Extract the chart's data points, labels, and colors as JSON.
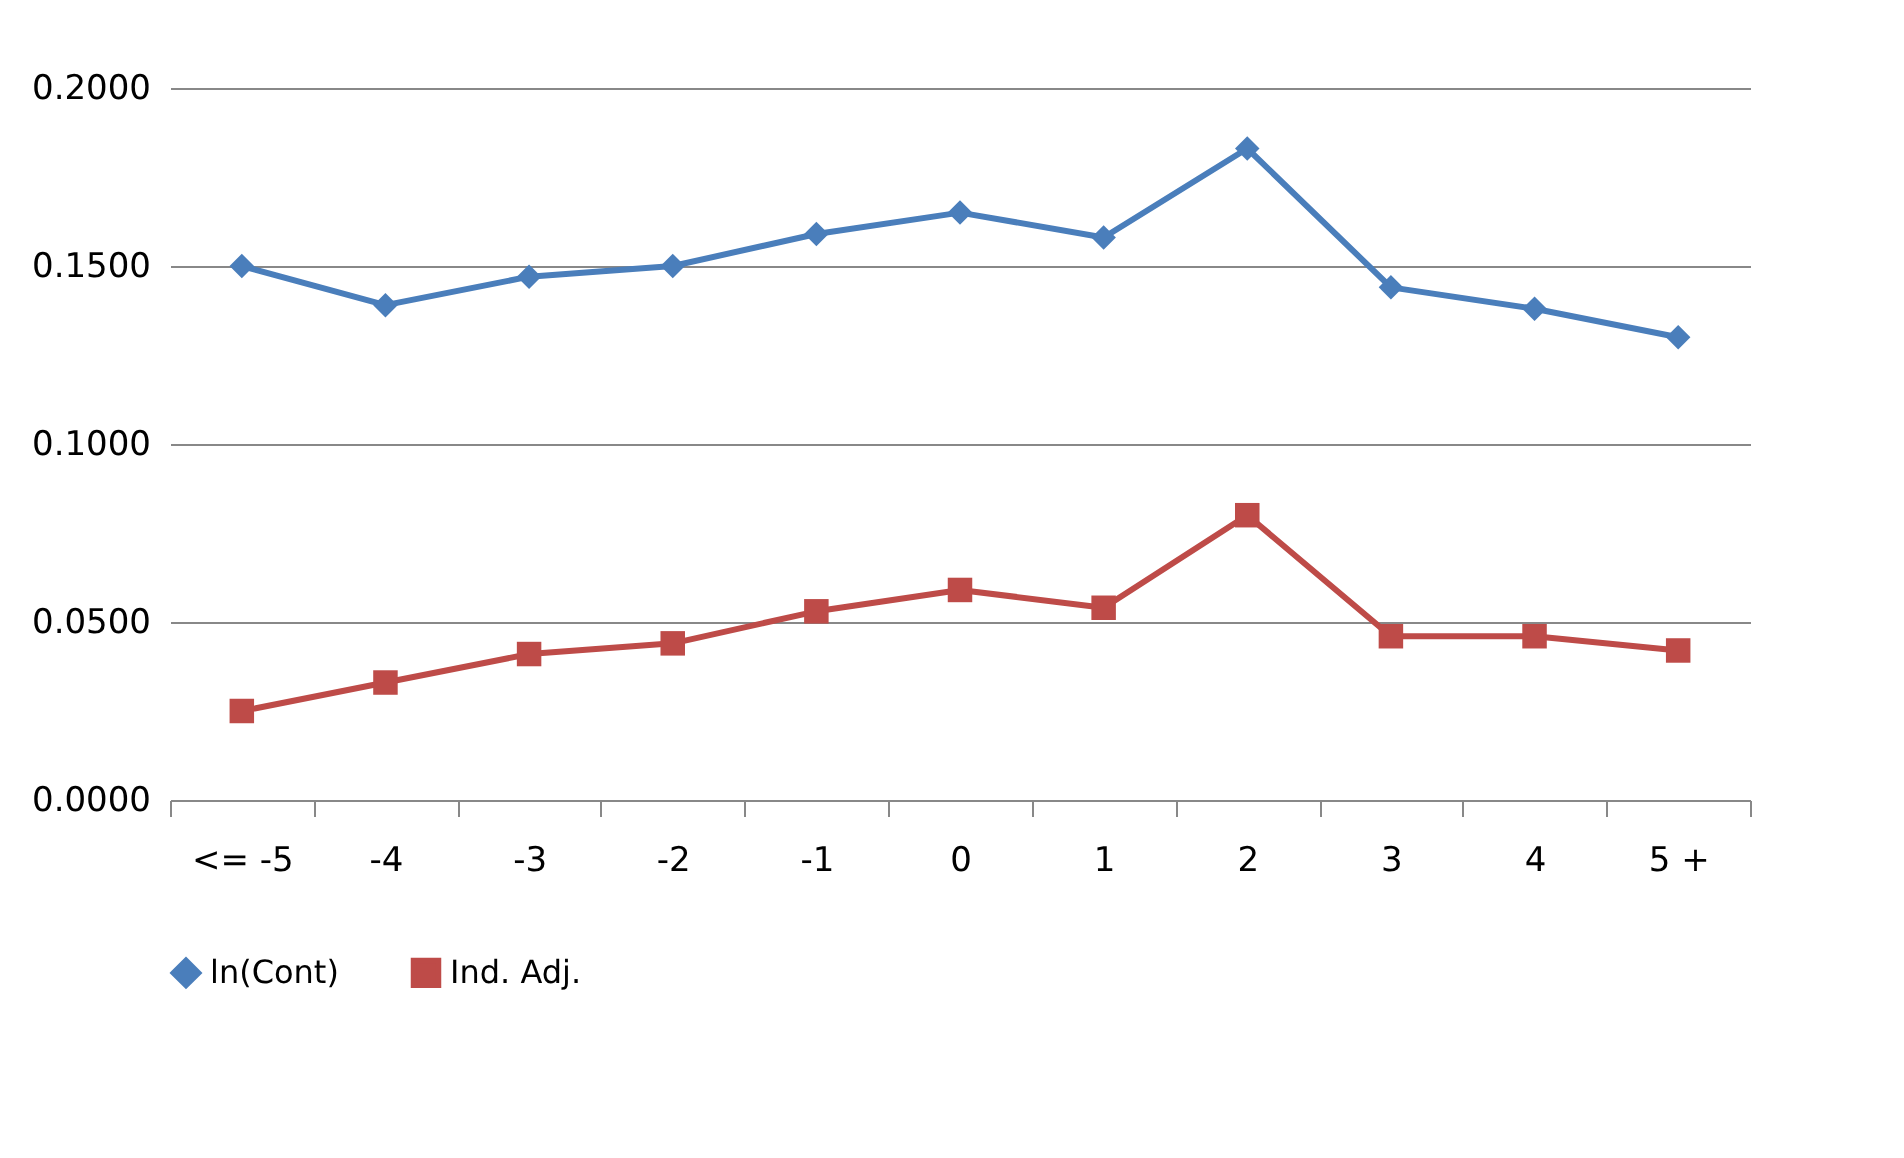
{
  "chart_data": {
    "type": "line",
    "categories": [
      "<= -5",
      "-4",
      "-3",
      "-2",
      "-1",
      "0",
      "1",
      "2",
      "3",
      "4",
      "5 +"
    ],
    "series": [
      {
        "name": "ln(Cont)",
        "color": "#4a7ebb",
        "marker": "diamond",
        "values": [
          0.15,
          0.139,
          0.147,
          0.15,
          0.159,
          0.165,
          0.158,
          0.183,
          0.144,
          0.138,
          0.13
        ]
      },
      {
        "name": "Ind. Adj.",
        "color": "#be4b48",
        "marker": "square",
        "values": [
          0.025,
          0.033,
          0.041,
          0.044,
          0.053,
          0.059,
          0.054,
          0.08,
          0.046,
          0.046,
          0.042
        ]
      }
    ],
    "ylim": [
      0,
      0.2
    ],
    "yticks": [
      {
        "value": 0,
        "label": "0.0000"
      },
      {
        "value": 0.05,
        "label": "0.0500"
      },
      {
        "value": 0.1,
        "label": "0.1000"
      },
      {
        "value": 0.15,
        "label": "0.1500"
      },
      {
        "value": 0.2,
        "label": "0.2000"
      }
    ],
    "grid": "y",
    "legend": "bottom"
  }
}
